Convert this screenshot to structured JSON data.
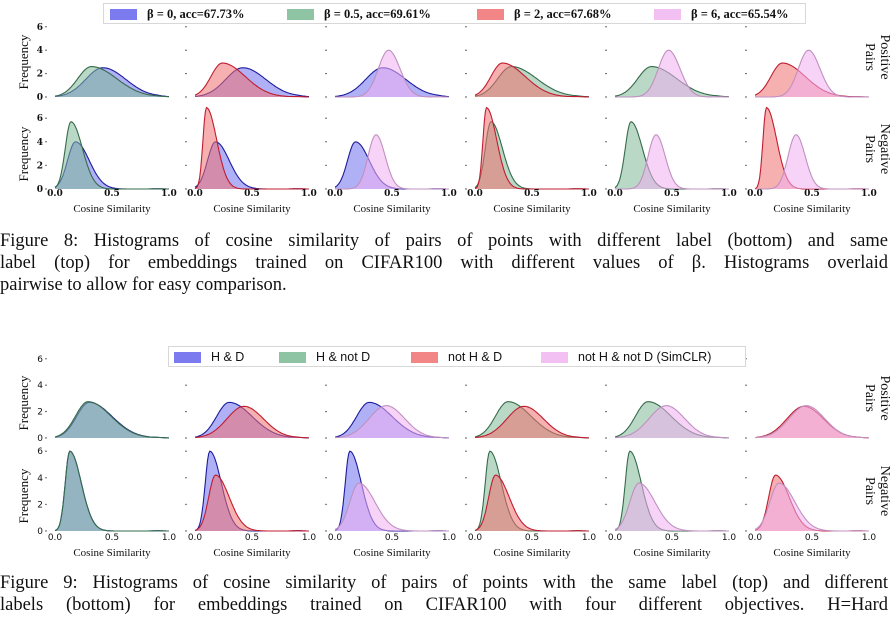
{
  "colors": {
    "beta0": "#6f6fef",
    "beta0_5": "#7fb896",
    "beta2": "#f07070",
    "beta6": "#f0b0f0"
  },
  "figure8": {
    "legend": [
      {
        "label": "β = 0, acc=67.73%",
        "color": "#7b7bef"
      },
      {
        "label": "β = 0.5, acc=69.61%",
        "color": "#8ec3a4"
      },
      {
        "label": "β = 2, acc=67.68%",
        "color": "#f28585"
      },
      {
        "label": "β = 6, acc=65.54%",
        "color": "#f2c0f2"
      }
    ],
    "caption": [
      "Figure 8: Histograms of cosine similarity of pairs of points with different label (bottom) and same",
      "label (top) for embeddings trained on CIFAR100 with different values of β. Histograms overlaid",
      "pairwise to allow for easy comparison."
    ]
  },
  "figure9": {
    "legend": [
      {
        "label": "H & D",
        "color": "#7b7bef"
      },
      {
        "label": "H & not D",
        "color": "#8ec3a4"
      },
      {
        "label": "not H & D",
        "color": "#f28585"
      },
      {
        "label": "not H & not D (SimCLR)",
        "color": "#f2c0f2"
      }
    ],
    "caption": [
      "Figure 9: Histograms of cosine similarity of pairs of points with the same label (top) and different",
      "labels (bottom) for embeddings trained on CIFAR100 with four different objectives.  H=Hard"
    ]
  },
  "axes": {
    "xlabel": "Cosine Similarity",
    "ylabel": "Frequency",
    "xticks": [
      "0.0",
      "0.5",
      "1.0"
    ],
    "yticks": [
      "0",
      "2",
      "4",
      "6"
    ],
    "row_labels": {
      "top": [
        "Positive",
        "Pairs"
      ],
      "bottom": [
        "Negative",
        "Pairs"
      ]
    }
  },
  "chart_data": [
    {
      "type": "area",
      "title": "",
      "xlabel": "Cosine Similarity",
      "ylabel": "Frequency",
      "xlim": [
        0,
        1
      ],
      "ylim": [
        0,
        6
      ],
      "grid": false,
      "legend": "top",
      "panel_pairs": [
        [
          0,
          1
        ],
        [
          0,
          2
        ],
        [
          0,
          3
        ],
        [
          1,
          2
        ],
        [
          1,
          3
        ],
        [
          2,
          3
        ]
      ],
      "rows": [
        "Positive Pairs",
        "Negative Pairs"
      ],
      "series": [
        {
          "name": "β = 0, acc=67.73%",
          "fill": "#6f6fef",
          "line": "#1c1c9c",
          "positive": {
            "mode": 0.42,
            "peak": 2.5,
            "sl": 0.15,
            "sr": 0.2
          },
          "negative": {
            "mode": 0.18,
            "peak": 4.0,
            "sl": 0.07,
            "sr": 0.12
          }
        },
        {
          "name": "β = 0.5, acc=69.61%",
          "fill": "#7fb896",
          "line": "#356b4b",
          "positive": {
            "mode": 0.32,
            "peak": 2.6,
            "sl": 0.12,
            "sr": 0.22
          },
          "negative": {
            "mode": 0.14,
            "peak": 5.7,
            "sl": 0.05,
            "sr": 0.1
          }
        },
        {
          "name": "β = 2, acc=67.68%",
          "fill": "#f07070",
          "line": "#c01c30",
          "positive": {
            "mode": 0.24,
            "peak": 2.9,
            "sl": 0.1,
            "sr": 0.2
          },
          "negative": {
            "mode": 0.1,
            "peak": 6.9,
            "sl": 0.03,
            "sr": 0.09
          }
        },
        {
          "name": "β = 6, acc=65.54%",
          "fill": "#f0b0f0",
          "line": "#c090c0",
          "positive": {
            "mode": 0.47,
            "peak": 4.0,
            "sl": 0.09,
            "sr": 0.1
          },
          "negative": {
            "mode": 0.36,
            "peak": 4.6,
            "sl": 0.07,
            "sr": 0.08
          }
        }
      ]
    },
    {
      "type": "area",
      "title": "",
      "xlabel": "Cosine Similarity",
      "ylabel": "Frequency",
      "xlim": [
        0,
        1
      ],
      "ylim": [
        0,
        6
      ],
      "grid": false,
      "legend": "top",
      "panel_pairs": [
        [
          0,
          1
        ],
        [
          0,
          2
        ],
        [
          0,
          3
        ],
        [
          1,
          2
        ],
        [
          1,
          3
        ],
        [
          2,
          3
        ]
      ],
      "rows": [
        "Positive Pairs",
        "Negative Pairs"
      ],
      "series": [
        {
          "name": "H & D",
          "fill": "#6f6fef",
          "line": "#1c1c9c",
          "positive": {
            "mode": 0.3,
            "peak": 2.7,
            "sl": 0.11,
            "sr": 0.2
          },
          "negative": {
            "mode": 0.13,
            "peak": 6.0,
            "sl": 0.04,
            "sr": 0.1
          }
        },
        {
          "name": "H & not D",
          "fill": "#7fb896",
          "line": "#356b4b",
          "positive": {
            "mode": 0.29,
            "peak": 2.75,
            "sl": 0.11,
            "sr": 0.2
          },
          "negative": {
            "mode": 0.13,
            "peak": 6.0,
            "sl": 0.04,
            "sr": 0.1
          }
        },
        {
          "name": "not H & D",
          "fill": "#f07070",
          "line": "#c01c30",
          "positive": {
            "mode": 0.43,
            "peak": 2.4,
            "sl": 0.15,
            "sr": 0.17
          },
          "negative": {
            "mode": 0.18,
            "peak": 4.2,
            "sl": 0.06,
            "sr": 0.12
          }
        },
        {
          "name": "not H & not D (SimCLR)",
          "fill": "#f0b0f0",
          "line": "#c090c0",
          "positive": {
            "mode": 0.45,
            "peak": 2.45,
            "sl": 0.15,
            "sr": 0.16
          },
          "negative": {
            "mode": 0.21,
            "peak": 3.6,
            "sl": 0.08,
            "sr": 0.14
          }
        }
      ]
    }
  ]
}
